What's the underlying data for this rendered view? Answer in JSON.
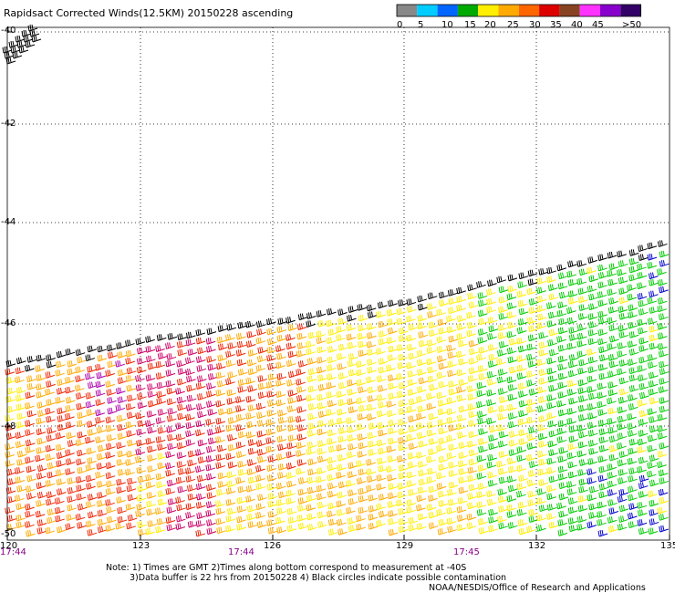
{
  "title": "Rapidsact Corrected Winds(12.5KM) 20150228 ascending",
  "legend": {
    "labels": [
      "0",
      "5",
      "10",
      "15",
      "20",
      "25",
      "30",
      "35",
      "40",
      "45",
      ">50 knots"
    ],
    "colors": [
      "#888888",
      "#00ccff",
      "#0066ff",
      "#00aa00",
      "#ffee00",
      "#ffaa00",
      "#ff6600",
      "#dd0000",
      "#884422",
      "#ff33ff",
      "#8800cc",
      "#330066"
    ]
  },
  "map": {
    "lon_labels": [
      "120",
      "123",
      "126",
      "129",
      "132",
      "135"
    ],
    "lat_labels": [
      "-40",
      "-42",
      "-44",
      "-46",
      "-48",
      "-50"
    ],
    "time_labels": [
      "17:44",
      "17:44",
      "17:45"
    ],
    "time_color": "#880088",
    "wind_colors": {
      "contamination": "#000000",
      "calm": "#00cc00",
      "light": "#ffee00",
      "moderate": "#ffaa00",
      "strong": "#ee2200",
      "very_strong": "#cc0066",
      "gale": "#aa00aa",
      "blue": "#0000cc"
    }
  },
  "notes": {
    "line1": "Note: 1) Times are GMT 2)Times along bottom correspond to measurement at -40S",
    "line2": "3)Data buffer is 22 hrs from 20150228 4) Black circles indicate possible contamination",
    "credit": "NOAA/NESDIS/Office of Research and Applications"
  }
}
